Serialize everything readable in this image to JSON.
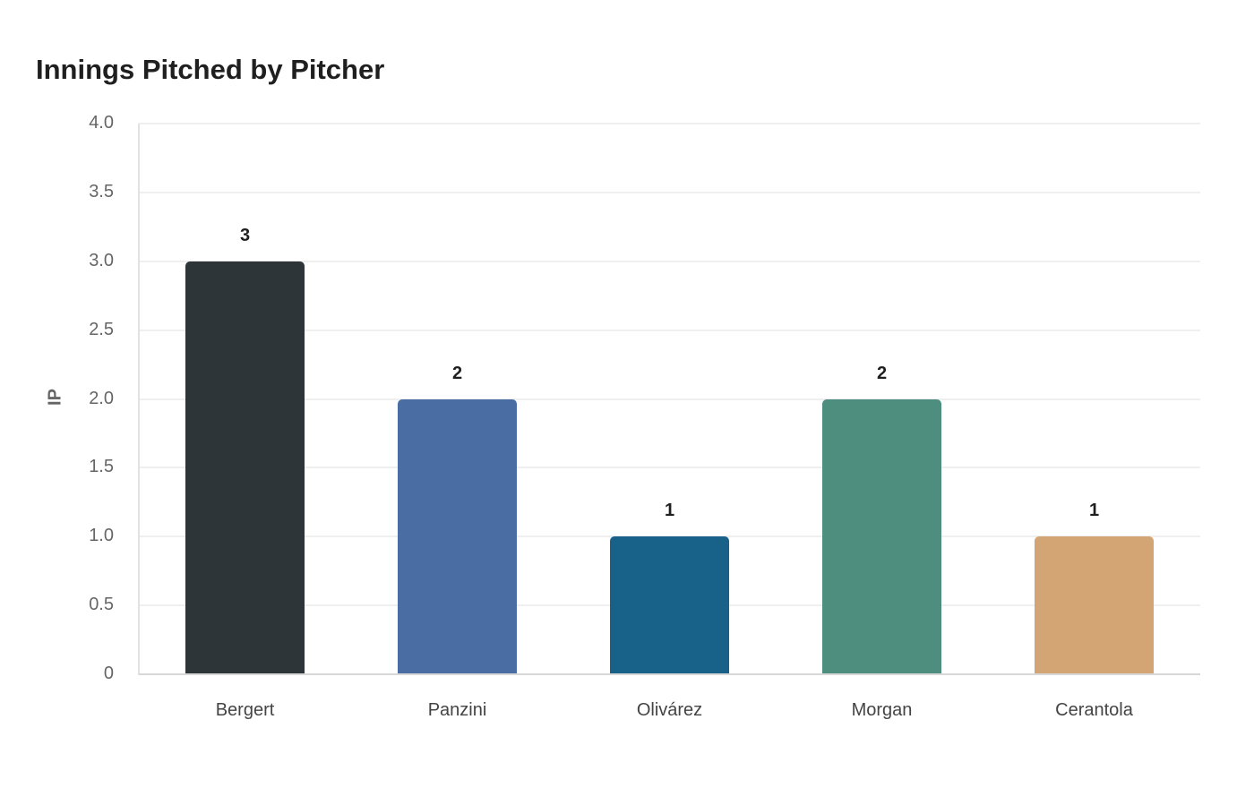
{
  "chart_data": {
    "type": "bar",
    "title": "Innings Pitched by Pitcher",
    "xlabel": "",
    "ylabel": "IP",
    "ylim": [
      0,
      4.0
    ],
    "yticks": [
      "0",
      "0.5",
      "1.0",
      "1.5",
      "2.0",
      "2.5",
      "3.0",
      "3.5",
      "4.0"
    ],
    "grid": true,
    "legend": false,
    "categories": [
      "Bergert",
      "Panzini",
      "Olivárez",
      "Morgan",
      "Cerantola"
    ],
    "values": [
      3,
      2,
      1,
      2,
      1
    ],
    "data_labels": [
      "3",
      "2",
      "1",
      "2",
      "1"
    ],
    "colors": [
      "#2e3538",
      "#4a6ea3",
      "#186289",
      "#4e8e7e",
      "#d3a474"
    ]
  }
}
